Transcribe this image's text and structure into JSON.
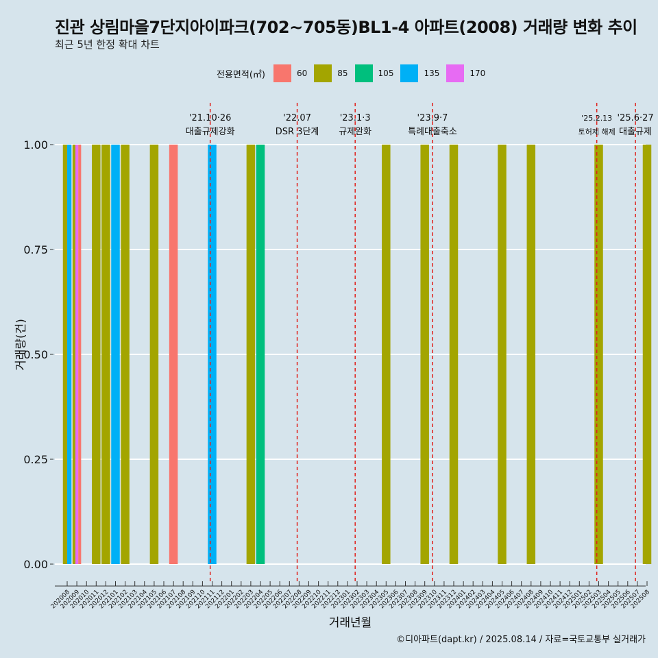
{
  "title": "진관 상림마을7단지아이파크(702~705동)BL1-4 아파트(2008) 거래량 변화 추이",
  "subtitle": "최근 5년 한정 확대 차트",
  "caption": "©디아파트(dapt.kr) / 2025.08.14 / 자료=국토교통부 실거래가",
  "colors": {
    "background": "#d6e4ec",
    "grid": "#ffffff",
    "event_line": "#e0201b",
    "area_60": "#f8766d",
    "area_85": "#a3a500",
    "area_105": "#00bf7d",
    "area_135": "#00b0f6",
    "area_170": "#e76bf3"
  },
  "chart_data": {
    "type": "bar",
    "title": "진관 상림마을7단지아이파크(702~705동)BL1-4 아파트(2008) 거래량 변화 추이",
    "subtitle": "최근 5년 한정 확대 차트",
    "xlabel": "거래년월",
    "ylabel": "거래량(건)",
    "ylim": [
      0,
      1
    ],
    "yticks": [
      "0.00",
      "0.25",
      "0.50",
      "0.75",
      "1.00"
    ],
    "legend": {
      "title": "전용면적(㎡)",
      "position": "top",
      "items": [
        {
          "label": "60",
          "color": "#f8766d"
        },
        {
          "label": "85",
          "color": "#a3a500"
        },
        {
          "label": "105",
          "color": "#00bf7d"
        },
        {
          "label": "135",
          "color": "#00b0f6"
        },
        {
          "label": "170",
          "color": "#e76bf3"
        }
      ]
    },
    "categories": [
      "202008",
      "202009",
      "202010",
      "202011",
      "202012",
      "202101",
      "202102",
      "202103",
      "202104",
      "202105",
      "202106",
      "202107",
      "202108",
      "202109",
      "202110",
      "202111",
      "202112",
      "202201",
      "202202",
      "202203",
      "202204",
      "202205",
      "202206",
      "202207",
      "202208",
      "202209",
      "202210",
      "202211",
      "202212",
      "202301",
      "202302",
      "202303",
      "202304",
      "202305",
      "202306",
      "202307",
      "202308",
      "202309",
      "202310",
      "202311",
      "202312",
      "202401",
      "202402",
      "202403",
      "202404",
      "202405",
      "202406",
      "202407",
      "202408",
      "202409",
      "202410",
      "202411",
      "202412",
      "202501",
      "202502",
      "202503",
      "202504",
      "202505",
      "202506",
      "202507",
      "202508"
    ],
    "bars": [
      {
        "month": "202008",
        "segments": [
          {
            "area": "85",
            "value": 1
          },
          {
            "area": "135",
            "value": 1
          }
        ]
      },
      {
        "month": "202009",
        "segments": [
          {
            "area": "85",
            "value": 1
          },
          {
            "area": "170",
            "value": 1
          },
          {
            "area": "60",
            "value": 1
          }
        ]
      },
      {
        "month": "202011",
        "segments": [
          {
            "area": "85",
            "value": 1
          }
        ]
      },
      {
        "month": "202012",
        "segments": [
          {
            "area": "85",
            "value": 1
          }
        ]
      },
      {
        "month": "202101",
        "segments": [
          {
            "area": "135",
            "value": 1
          }
        ]
      },
      {
        "month": "202102",
        "segments": [
          {
            "area": "85",
            "value": 1
          }
        ]
      },
      {
        "month": "202105",
        "segments": [
          {
            "area": "85",
            "value": 1
          }
        ]
      },
      {
        "month": "202107",
        "segments": [
          {
            "area": "60",
            "value": 1
          }
        ]
      },
      {
        "month": "202111",
        "segments": [
          {
            "area": "135",
            "value": 1
          }
        ]
      },
      {
        "month": "202203",
        "segments": [
          {
            "area": "85",
            "value": 1
          }
        ]
      },
      {
        "month": "202204",
        "segments": [
          {
            "area": "105",
            "value": 1
          }
        ]
      },
      {
        "month": "202305",
        "segments": [
          {
            "area": "85",
            "value": 1
          }
        ]
      },
      {
        "month": "202309",
        "segments": [
          {
            "area": "85",
            "value": 1
          }
        ]
      },
      {
        "month": "202312",
        "segments": [
          {
            "area": "85",
            "value": 1
          }
        ]
      },
      {
        "month": "202405",
        "segments": [
          {
            "area": "85",
            "value": 1
          }
        ]
      },
      {
        "month": "202408",
        "segments": [
          {
            "area": "85",
            "value": 1
          }
        ]
      },
      {
        "month": "202503",
        "segments": [
          {
            "area": "85",
            "value": 1
          }
        ]
      },
      {
        "month": "202508",
        "segments": [
          {
            "area": "85",
            "value": 1
          }
        ]
      }
    ],
    "events": [
      {
        "date": "2021-10-26",
        "month_pos": 14.8,
        "line1": "'21.10·26",
        "line2": "대출규제강화",
        "small": false
      },
      {
        "date": "2022-07",
        "month_pos": 23.8,
        "line1": "'22.07",
        "line2": "DSR 3단계",
        "small": false
      },
      {
        "date": "2023-01-03",
        "month_pos": 29.8,
        "line1": "'23.1·3",
        "line2": "규제완화",
        "small": false
      },
      {
        "date": "2023-09-07",
        "month_pos": 37.8,
        "line1": "'23.9·7",
        "line2": "특례대출축소",
        "small": false
      },
      {
        "date": "2025-02-13",
        "month_pos": 54.8,
        "line1": "'25.2.13",
        "line2": "토허제 해제",
        "small": true
      },
      {
        "date": "2025-06-27",
        "month_pos": 58.8,
        "line1": "'25.6·27",
        "line2": "대출규제",
        "small": false
      }
    ]
  }
}
